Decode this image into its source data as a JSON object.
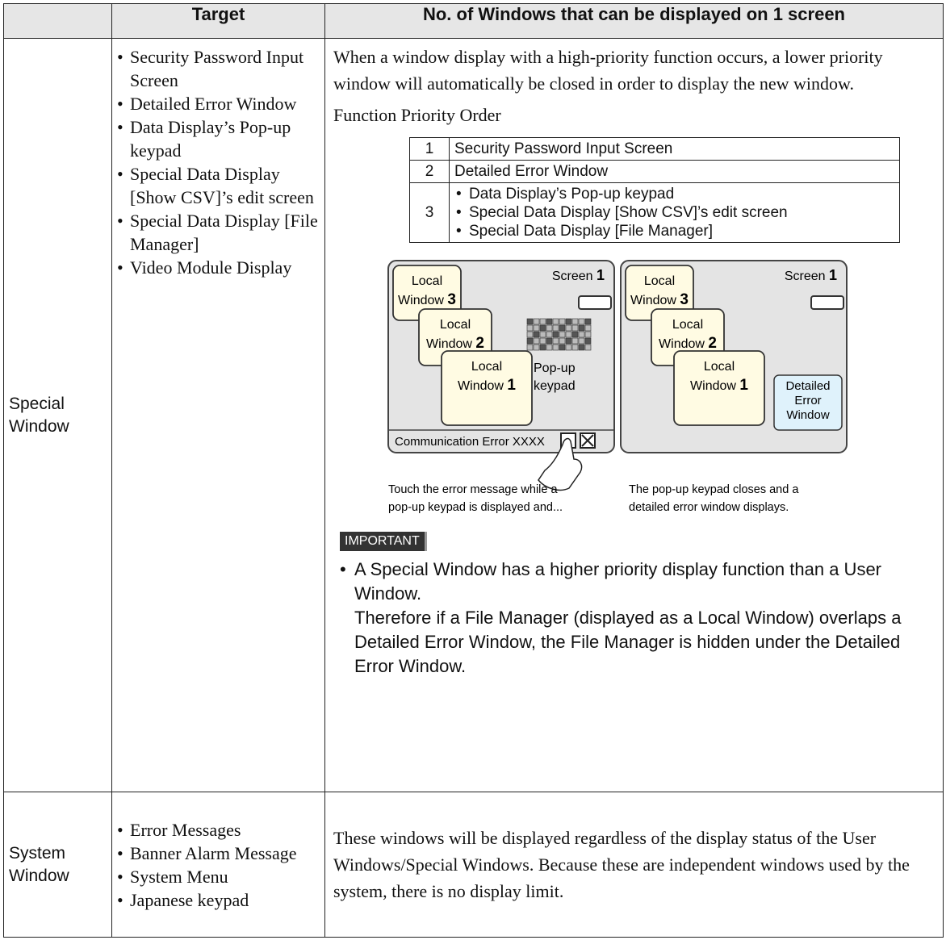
{
  "table": {
    "header": [
      "Target",
      "No. of Windows that can be displayed on 1 screen"
    ],
    "rows": [
      {
        "label": "Special Window",
        "targets": [
          "Security Password Input Screen",
          "Detailed Error Window",
          "Data Display’s Pop-up keypad",
          "Special Data Display [Show CSV]’s edit screen",
          "Special Data Display [File Manager]",
          "Video Module Display"
        ],
        "description": "When a window display with a high-priority function occurs, a lower priority window will automatically be closed in order to display the new window.",
        "priority_caption": "Function Priority Order",
        "priority_table": [
          {
            "rank": "1",
            "items": [
              "Security Password Input Screen"
            ]
          },
          {
            "rank": "2",
            "items": [
              "Detailed Error Window"
            ]
          },
          {
            "rank": "3",
            "items": [
              "Data Display’s Pop-up keypad",
              "Special Data Display [Show CSV]’s edit screen",
              "Special Data Display [File Manager]"
            ]
          }
        ],
        "figure": {
          "before": {
            "screen_label": "Screen",
            "screen_number": "1",
            "windows": [
              {
                "label": "Local",
                "label2": "Window",
                "number": "3"
              },
              {
                "label": "Local",
                "label2": "Window",
                "number": "2"
              },
              {
                "label": "Local",
                "label2": "Window",
                "number": "1"
              }
            ],
            "keypad_label": [
              "Pop-up",
              "keypad"
            ],
            "error_bar": "Communication Error XXXX",
            "caption": [
              "Touch the error message while a",
              "pop-up keypad is displayed and..."
            ]
          },
          "after": {
            "screen_label": "Screen",
            "screen_number": "1",
            "windows": [
              {
                "label": "Local",
                "label2": "Window",
                "number": "3"
              },
              {
                "label": "Local",
                "label2": "Window",
                "number": "2"
              },
              {
                "label": "Local",
                "label2": "Window",
                "number": "1"
              }
            ],
            "error_window": [
              "Detailed",
              "Error",
              "Window"
            ],
            "caption": [
              "The pop-up keypad closes and a",
              "detailed error window displays."
            ]
          }
        },
        "important": {
          "tag": "IMPORTANT",
          "items": [
            "A Special Window has a higher priority display function than a User Window.",
            "Therefore if a File Manager (displayed as a Local Window) overlaps a Detailed Error Window, the File Manager is hidden under the Detailed Error Window."
          ]
        }
      },
      {
        "label": "System Window",
        "targets": [
          "Error Messages",
          "Banner Alarm Message",
          "System Menu",
          "Japanese keypad"
        ],
        "description": "These windows will be displayed regardless of the display status of the User Windows/Special Windows. Because these are independent windows used by the system, there is no display limit."
      }
    ]
  }
}
